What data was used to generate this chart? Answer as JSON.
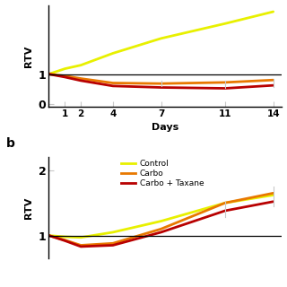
{
  "days": [
    0,
    1,
    2,
    4,
    7,
    11,
    14
  ],
  "panel_a": {
    "control": [
      1.0,
      1.18,
      1.3,
      1.7,
      2.2,
      2.7,
      3.1
    ],
    "carbo": [
      1.0,
      0.94,
      0.85,
      0.7,
      0.68,
      0.72,
      0.8
    ],
    "carbo_taxane": [
      1.0,
      0.9,
      0.78,
      0.6,
      0.55,
      0.52,
      0.62
    ]
  },
  "panel_b": {
    "control": [
      1.0,
      0.98,
      0.97,
      1.05,
      1.22,
      1.5,
      1.62
    ],
    "carbo": [
      1.0,
      0.93,
      0.85,
      0.88,
      1.1,
      1.5,
      1.65
    ],
    "carbo_taxane": [
      1.0,
      0.92,
      0.83,
      0.85,
      1.05,
      1.38,
      1.52
    ]
  },
  "colors": {
    "control": "#e8f000",
    "carbo": "#e87800",
    "carbo_taxane": "#b80000"
  },
  "linewidth": 2.0,
  "xlabel": "Days",
  "ylabel": "RTV",
  "xticks": [
    1,
    2,
    4,
    7,
    11,
    14
  ],
  "panel_a_yticks": [
    0,
    1
  ],
  "panel_a_ylim": [
    -0.1,
    3.3
  ],
  "panel_b_yticks": [
    1,
    2
  ],
  "panel_b_ylim": [
    0.65,
    2.2
  ],
  "legend_labels": [
    "Control",
    "Carbo",
    "Carbo + Taxane"
  ],
  "background_color": "#ffffff",
  "hline_y": 1.0,
  "tick_color": "#c8c8c8"
}
